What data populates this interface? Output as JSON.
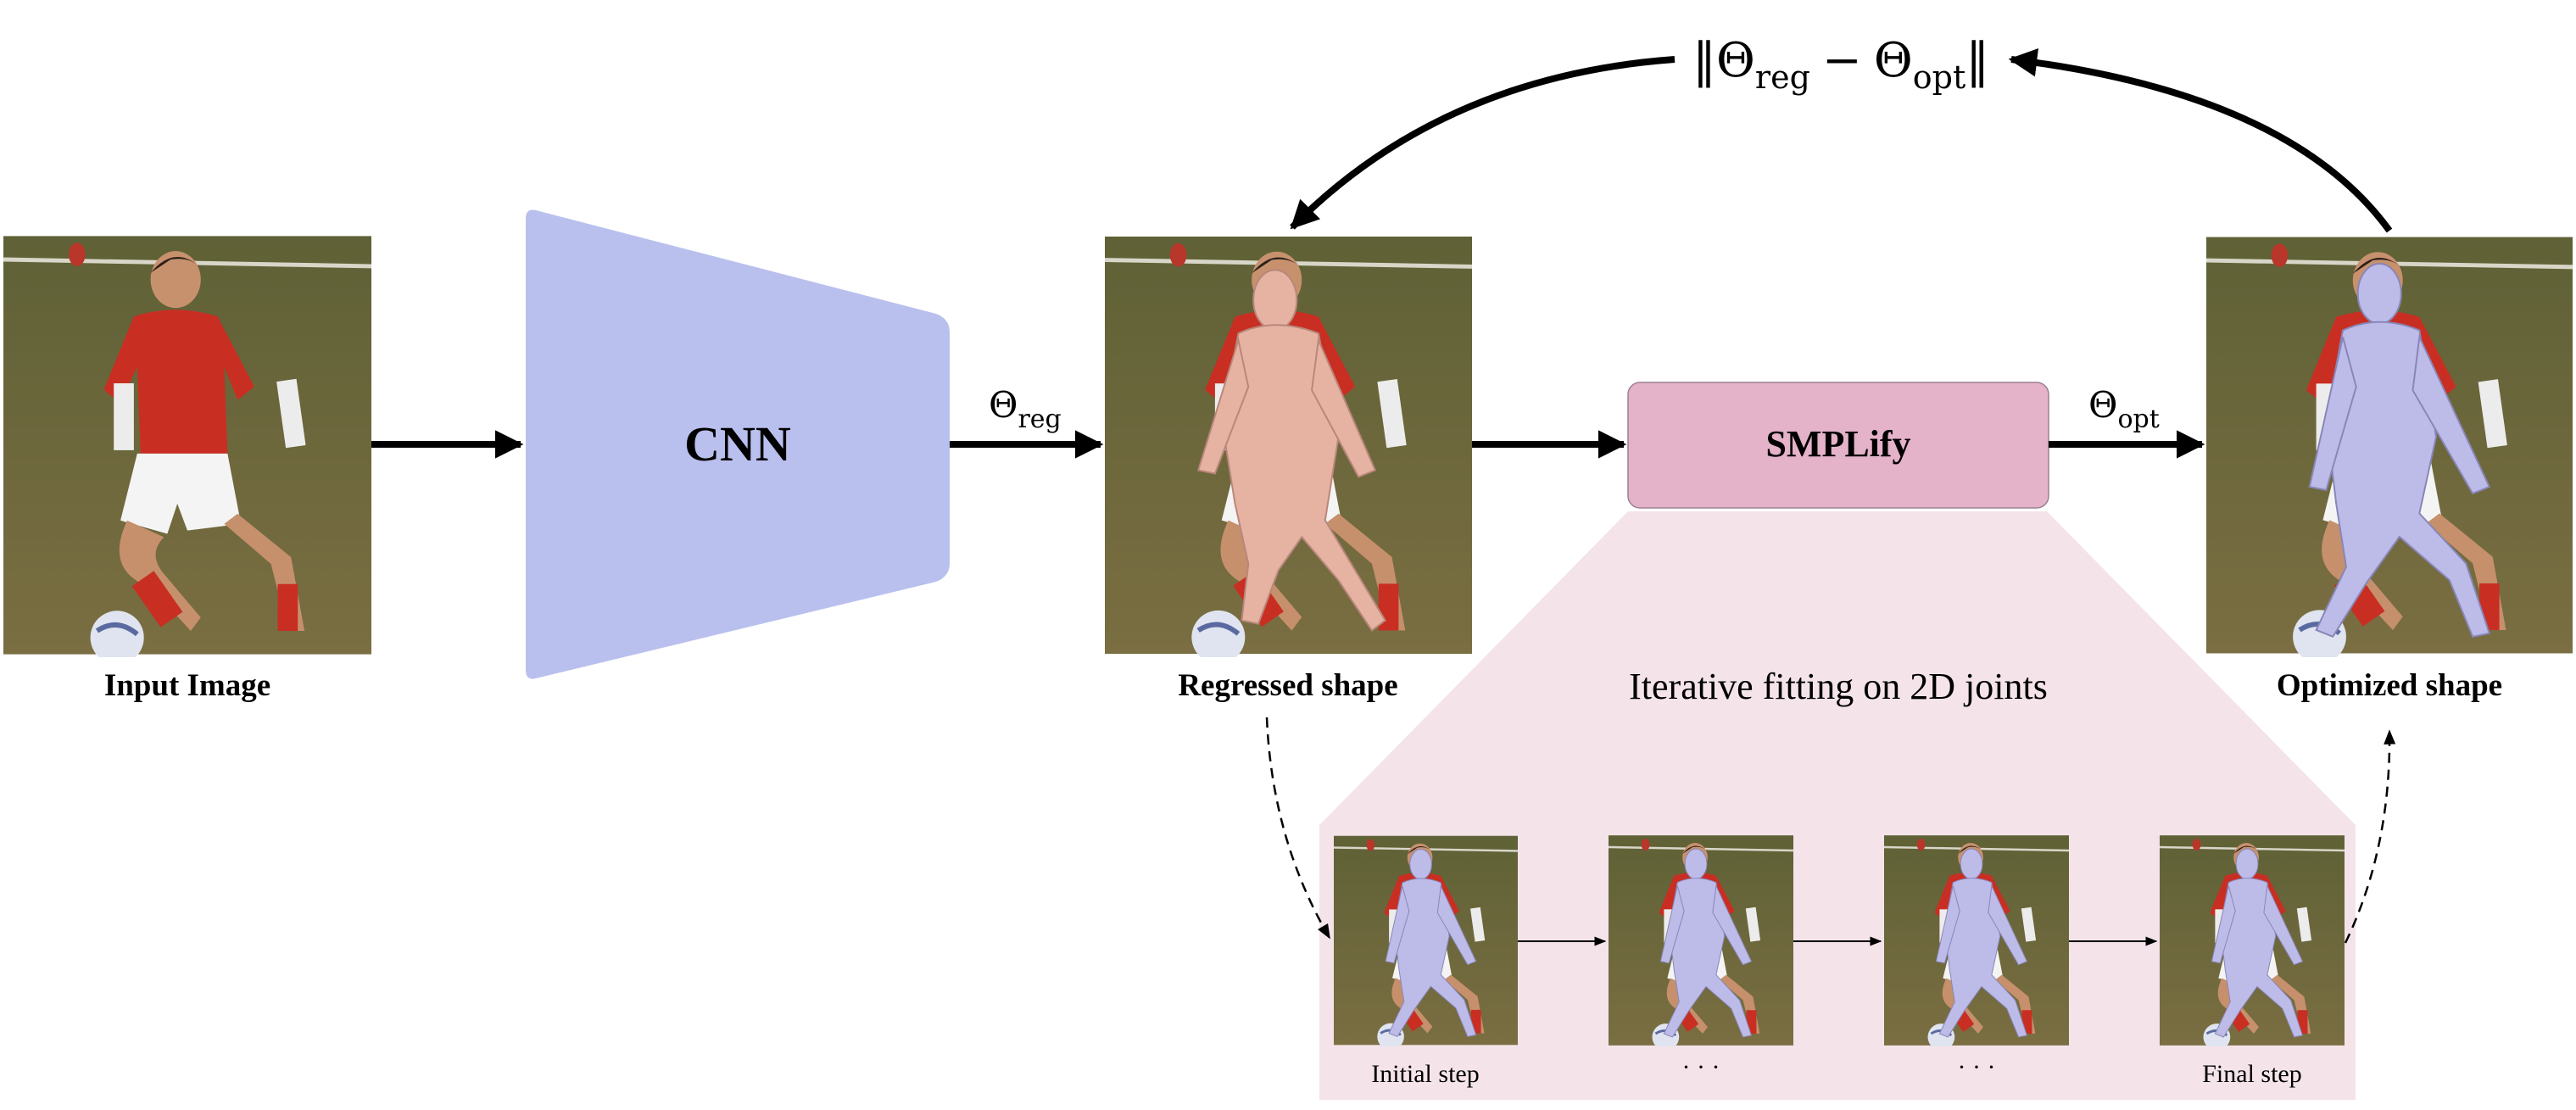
{
  "cnn": {
    "label": "CNN"
  },
  "smplify": {
    "label": "SMPLify"
  },
  "input": {
    "label": "Input Image"
  },
  "regressed": {
    "label": "Regressed shape"
  },
  "optimized": {
    "label": "Optimized shape"
  },
  "iterative": {
    "caption": "Iterative fitting on 2D joints"
  },
  "theta_reg": {
    "symbol": "Θ",
    "subscript": "reg"
  },
  "theta_opt": {
    "symbol": "Θ",
    "subscript": "opt"
  },
  "loss": {
    "open": "‖",
    "theta": "Θ",
    "sub_reg": "reg",
    "minus": "−",
    "theta2": "Θ",
    "sub_opt": "opt",
    "close": "‖"
  },
  "steps": [
    {
      "label": "Initial step"
    },
    {
      "label": "· · ·"
    },
    {
      "label": "· · ·"
    },
    {
      "label": "Final step"
    }
  ],
  "colors": {
    "cnn_fill": "#b9c0ee",
    "smplify_fill": "#e4b2c9",
    "smplify_stroke": "#9a8090",
    "iter_bg": "#f4e4ea",
    "grass": "#6b6a3c",
    "jersey_red": "#c92e22",
    "body_skin": "#e6b2a2",
    "body_purple": "#bdbbe8"
  }
}
